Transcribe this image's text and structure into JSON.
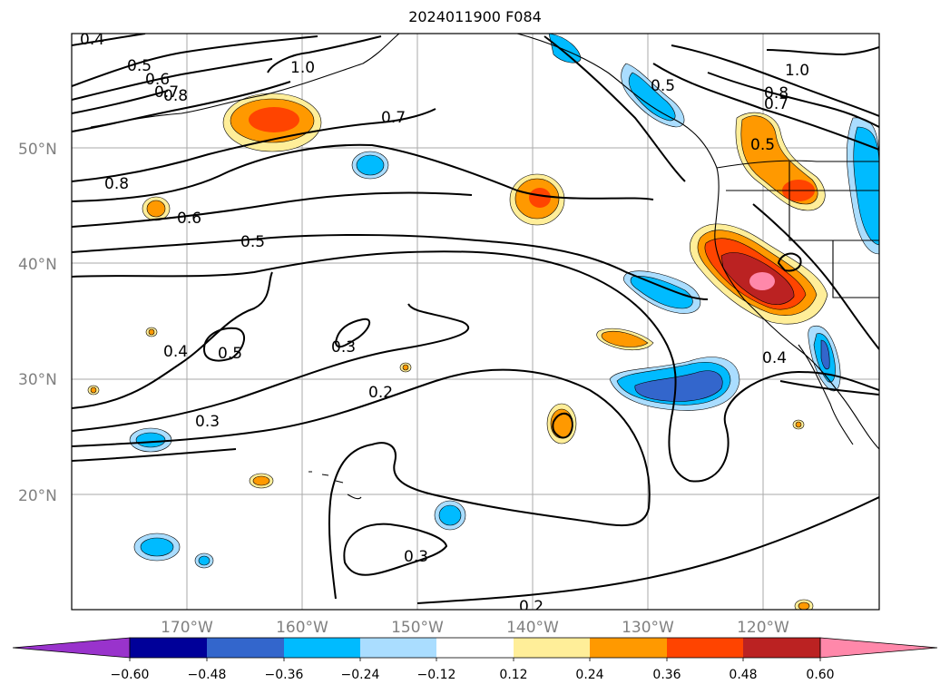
{
  "title": "2024011900 F084",
  "map": {
    "type": "filled-contour-map",
    "region": "North Pacific / West Coast of North America",
    "lat_labels": [
      "50°N",
      "40°N",
      "30°N",
      "20°N"
    ],
    "lon_labels": [
      "170°W",
      "160°W",
      "150°W",
      "140°W",
      "130°W",
      "120°W"
    ],
    "contour_labels": [
      "0.4",
      "0.5",
      "0.6",
      "0.7",
      "0.8",
      "1.0",
      "0.7",
      "0.8",
      "0.6",
      "0.5",
      "0.4",
      "0.5",
      "0.3",
      "0.3",
      "0.2",
      "0.3",
      "0.2",
      "1.0",
      "0.8",
      "0.7",
      "0.5",
      "0.5",
      "0.4"
    ]
  },
  "colorbar": {
    "ticks": [
      "−0.60",
      "−0.48",
      "−0.36",
      "−0.24",
      "−0.12",
      "0.12",
      "0.24",
      "0.36",
      "0.48",
      "0.60"
    ],
    "colors": [
      "#9933cc",
      "#000099",
      "#3366cc",
      "#00bbff",
      "#aaddff",
      "#ffffff",
      "#ffee99",
      "#ff9900",
      "#ff4400",
      "#bb2222",
      "#ff88aa"
    ]
  }
}
